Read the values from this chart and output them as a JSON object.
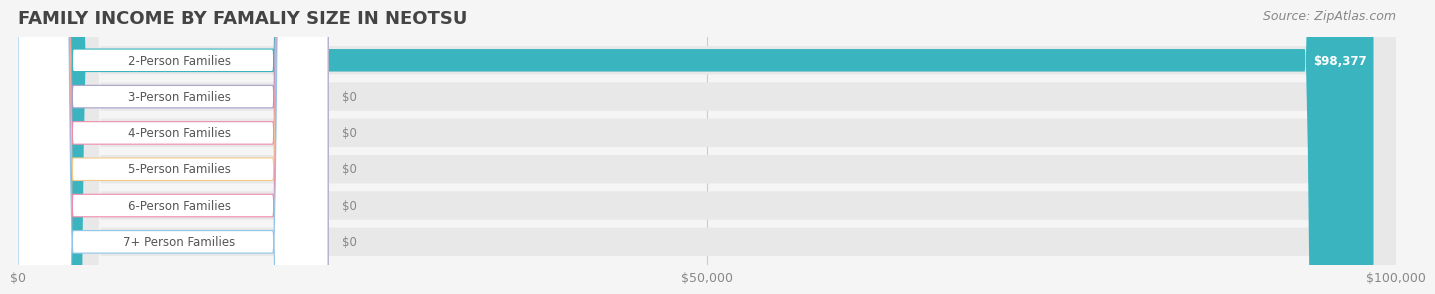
{
  "title": "FAMILY INCOME BY FAMALIY SIZE IN NEOTSU",
  "source": "Source: ZipAtlas.com",
  "categories": [
    "2-Person Families",
    "3-Person Families",
    "4-Person Families",
    "5-Person Families",
    "6-Person Families",
    "7+ Person Families"
  ],
  "values": [
    98377,
    0,
    0,
    0,
    0,
    0
  ],
  "bar_colors": [
    "#3ab5c0",
    "#a89fc8",
    "#f08caa",
    "#f5c98a",
    "#f08caa",
    "#90c4e8"
  ],
  "label_colors": [
    "#3ab5c0",
    "#a89fc8",
    "#f08caa",
    "#f5c98a",
    "#f08caa",
    "#90c4e8"
  ],
  "xlim": [
    0,
    100000
  ],
  "xticks": [
    0,
    50000,
    100000
  ],
  "xtick_labels": [
    "$0",
    "$50,000",
    "$100,000"
  ],
  "value_labels": [
    "$98,377",
    "$0",
    "$0",
    "$0",
    "$0",
    "$0"
  ],
  "background_color": "#f5f5f5",
  "bar_background_color": "#e8e8e8",
  "title_fontsize": 13,
  "title_color": "#444444",
  "source_fontsize": 9,
  "source_color": "#888888"
}
